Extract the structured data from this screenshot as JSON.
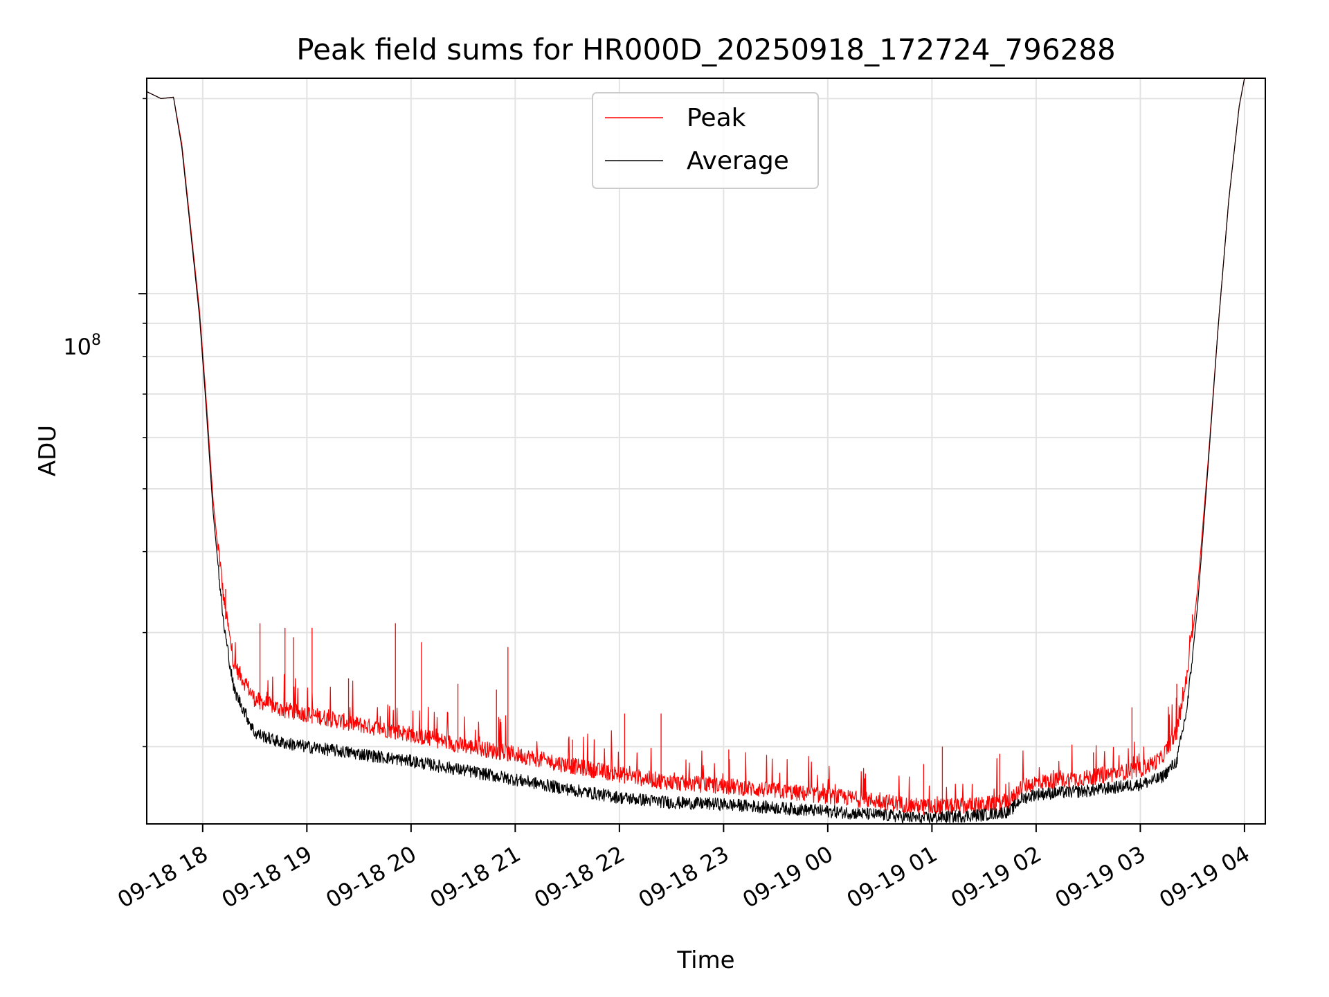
{
  "chart_data": {
    "type": "line",
    "title": "Peak field sums for HR000D_20250918_172724_796288",
    "xlabel": "Time",
    "ylabel": "ADU",
    "yscale": "log",
    "y_major_tick": {
      "value": 100000000,
      "label_base": "10",
      "label_exp": "8"
    },
    "ylim": [
      15200000,
      215000000
    ],
    "xlim_hours": [
      17.463,
      28.2
    ],
    "grid": true,
    "legend_position": "top-center",
    "x_tick_labels": [
      "09-18 18",
      "09-18 19",
      "09-18 20",
      "09-18 21",
      "09-18 22",
      "09-18 23",
      "09-19 00",
      "09-19 01",
      "09-19 02",
      "09-19 03",
      "09-19 04"
    ],
    "x_tick_hours": [
      18,
      19,
      20,
      21,
      22,
      23,
      24,
      25,
      26,
      27,
      28
    ],
    "y_minor_ticks": [
      20000000,
      30000000,
      40000000,
      50000000,
      60000000,
      70000000,
      80000000,
      90000000,
      200000000
    ],
    "series": [
      {
        "name": "Peak",
        "color": "#ff0000",
        "x_hours": [
          17.463,
          17.6,
          17.72,
          17.8,
          17.9,
          17.97,
          18.03,
          18.1,
          18.2,
          18.3,
          18.5,
          18.75,
          19.0,
          19.5,
          20.0,
          20.5,
          21.0,
          21.5,
          22.0,
          22.5,
          23.0,
          23.5,
          24.0,
          24.5,
          24.9,
          25.2,
          25.5,
          25.75,
          25.85,
          26.0,
          26.5,
          27.0,
          27.2,
          27.35,
          27.45,
          27.55,
          27.65,
          27.75,
          27.85,
          27.95,
          28.0
        ],
        "values": [
          205000000,
          200000000,
          201000000,
          170000000,
          120000000,
          94000000,
          70000000,
          48000000,
          33000000,
          26000000,
          23000000,
          22200000,
          21800000,
          21000000,
          20300000,
          19500000,
          18900000,
          18200000,
          17600000,
          17100000,
          16900000,
          16600000,
          16300000,
          16000000,
          15700000,
          15700000,
          15800000,
          16000000,
          16800000,
          17100000,
          17400000,
          17900000,
          18600000,
          20500000,
          25000000,
          35000000,
          55000000,
          90000000,
          140000000,
          195000000,
          215000000
        ],
        "spikes": [
          {
            "x_hour": 18.22,
            "value": 35000000
          },
          {
            "x_hour": 18.55,
            "value": 31000000
          },
          {
            "x_hour": 18.79,
            "value": 30500000
          },
          {
            "x_hour": 18.87,
            "value": 29500000
          },
          {
            "x_hour": 19.05,
            "value": 30500000
          },
          {
            "x_hour": 19.4,
            "value": 25500000
          },
          {
            "x_hour": 19.85,
            "value": 31000000
          },
          {
            "x_hour": 20.1,
            "value": 29000000
          },
          {
            "x_hour": 20.45,
            "value": 25000000
          },
          {
            "x_hour": 20.82,
            "value": 24500000
          },
          {
            "x_hour": 20.93,
            "value": 28500000
          },
          {
            "x_hour": 21.55,
            "value": 20500000
          },
          {
            "x_hour": 22.05,
            "value": 22500000
          },
          {
            "x_hour": 22.4,
            "value": 22500000
          },
          {
            "x_hour": 23.05,
            "value": 19800000
          },
          {
            "x_hour": 24.92,
            "value": 18800000
          },
          {
            "x_hour": 25.1,
            "value": 20000000
          },
          {
            "x_hour": 25.65,
            "value": 19500000
          },
          {
            "x_hour": 26.55,
            "value": 19600000
          },
          {
            "x_hour": 26.92,
            "value": 23000000
          },
          {
            "x_hour": 27.35,
            "value": 25000000
          },
          {
            "x_hour": 27.5,
            "value": 32000000
          }
        ]
      },
      {
        "name": "Average",
        "color": "#000000",
        "x_hours": [
          17.463,
          17.6,
          17.72,
          17.8,
          17.9,
          17.97,
          18.03,
          18.1,
          18.2,
          18.3,
          18.5,
          18.75,
          19.0,
          19.5,
          20.0,
          20.5,
          21.0,
          21.5,
          22.0,
          22.5,
          23.0,
          23.5,
          24.0,
          24.5,
          24.9,
          25.2,
          25.5,
          25.75,
          25.85,
          26.0,
          26.5,
          27.0,
          27.2,
          27.35,
          27.45,
          27.55,
          27.65,
          27.75,
          27.85,
          27.95,
          28.0
        ],
        "values": [
          205000000,
          200000000,
          201000000,
          168000000,
          118000000,
          92000000,
          68000000,
          46000000,
          31000000,
          24500000,
          21000000,
          20300000,
          20000000,
          19500000,
          19000000,
          18400000,
          17800000,
          17200000,
          16700000,
          16400000,
          16300000,
          16100000,
          15900000,
          15700000,
          15500000,
          15600000,
          15700000,
          15900000,
          16600000,
          16900000,
          17100000,
          17500000,
          17900000,
          19000000,
          23000000,
          33000000,
          54000000,
          90000000,
          140000000,
          195000000,
          215000000
        ]
      }
    ]
  }
}
